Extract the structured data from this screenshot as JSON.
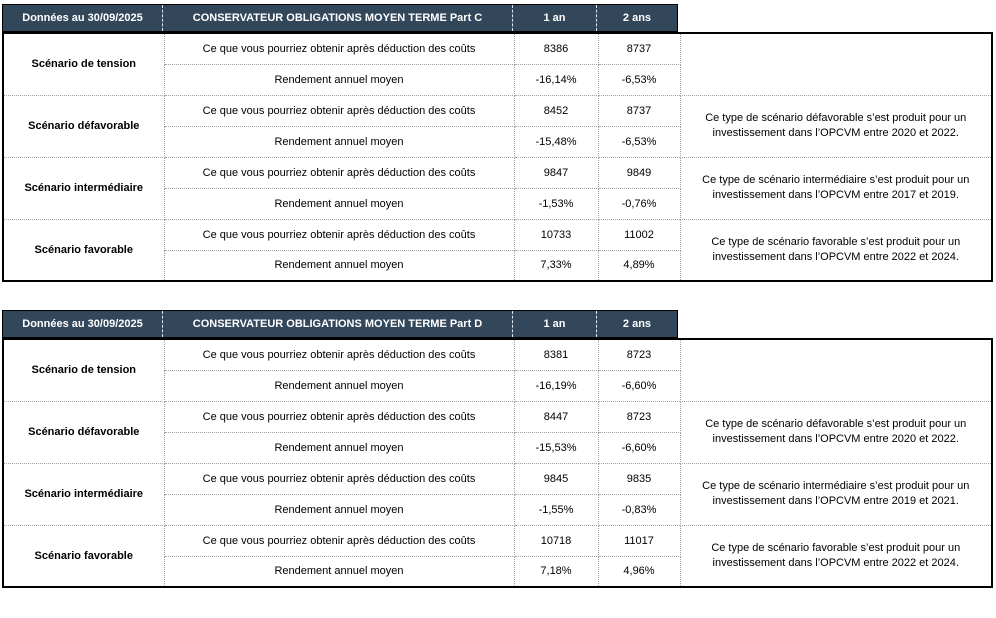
{
  "labels": {
    "obtain": "Ce que vous pourriez obtenir après déduction des coûts",
    "yield": "Rendement annuel moyen"
  },
  "colors": {
    "header_bg": "#33475B",
    "header_text": "#ffffff",
    "outer_border": "#000000",
    "inner_border_dotted": "#a3a3a3"
  },
  "tables": [
    {
      "date_label": "Données au 30/09/2025",
      "title": "CONSERVATEUR OBLIGATIONS MOYEN TERME Part C",
      "col_1an": "1 an",
      "col_2ans": "2 ans",
      "scenarios": [
        {
          "name": "Scénario de tension",
          "obtain_1an": "8386",
          "obtain_2ans": "8737",
          "yield_1an": "-16,14%",
          "yield_2ans": "-6,53%",
          "note": ""
        },
        {
          "name": "Scénario défavorable",
          "obtain_1an": "8452",
          "obtain_2ans": "8737",
          "yield_1an": "-15,48%",
          "yield_2ans": "-6,53%",
          "note": "Ce type de scénario défavorable s’est produit pour un investissement dans l’OPCVM entre 2020 et 2022."
        },
        {
          "name": "Scénario intermédiaire",
          "obtain_1an": "9847",
          "obtain_2ans": "9849",
          "yield_1an": "-1,53%",
          "yield_2ans": "-0,76%",
          "note": "Ce type de scénario intermédiaire s’est produit pour un investissement dans l’OPCVM entre 2017 et 2019."
        },
        {
          "name": "Scénario favorable",
          "obtain_1an": "10733",
          "obtain_2ans": "11002",
          "yield_1an": "7,33%",
          "yield_2ans": "4,89%",
          "note": "Ce type de scénario favorable s’est produit pour un investissement dans l’OPCVM entre 2022 et 2024."
        }
      ]
    },
    {
      "date_label": "Données au 30/09/2025",
      "title": "CONSERVATEUR OBLIGATIONS MOYEN TERME Part D",
      "col_1an": "1 an",
      "col_2ans": "2 ans",
      "scenarios": [
        {
          "name": "Scénario de tension",
          "obtain_1an": "8381",
          "obtain_2ans": "8723",
          "yield_1an": "-16,19%",
          "yield_2ans": "-6,60%",
          "note": ""
        },
        {
          "name": "Scénario défavorable",
          "obtain_1an": "8447",
          "obtain_2ans": "8723",
          "yield_1an": "-15,53%",
          "yield_2ans": "-6,60%",
          "note": "Ce type de scénario défavorable s’est produit pour un investissement dans l’OPCVM entre 2020 et 2022."
        },
        {
          "name": "Scénario intermédiaire",
          "obtain_1an": "9845",
          "obtain_2ans": "9835",
          "yield_1an": "-1,55%",
          "yield_2ans": "-0,83%",
          "note": "Ce type de scénario intermédiaire s’est produit pour un investissement dans l’OPCVM entre 2019 et 2021."
        },
        {
          "name": "Scénario favorable",
          "obtain_1an": "10718",
          "obtain_2ans": "11017",
          "yield_1an": "7,18%",
          "yield_2ans": "4,96%",
          "note": "Ce type de scénario favorable s’est produit pour un investissement dans l’OPCVM entre 2022 et 2024."
        }
      ]
    }
  ]
}
